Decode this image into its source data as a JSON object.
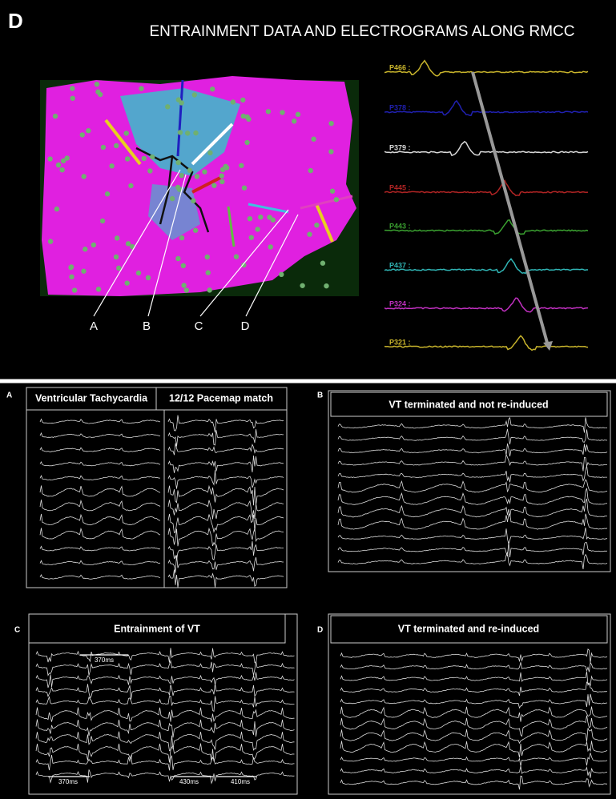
{
  "figure": {
    "panel_label": "D",
    "title": "ENTRAINMENT DATA AND ELECTROGRAMS ALONG RMCC",
    "map_labels": [
      "A",
      "B",
      "C",
      "D"
    ],
    "electrograms": [
      {
        "label": "P466 :",
        "color": "#c8b42c"
      },
      {
        "label": "P378 :",
        "color": "#2020b0"
      },
      {
        "label": "P379 :",
        "color": "#d8d8d8"
      },
      {
        "label": "P445 :",
        "color": "#b02424"
      },
      {
        "label": "P443 :",
        "color": "#3aa030"
      },
      {
        "label": "P437 :",
        "color": "#30b4b4"
      },
      {
        "label": "P324 :",
        "color": "#c030c0"
      },
      {
        "label": "P321 :",
        "color": "#c8b42c"
      }
    ]
  },
  "panels": [
    {
      "label": "A",
      "titles": [
        "Ventricular Tachycardia",
        "12/12 Pacemap match"
      ]
    },
    {
      "label": "B",
      "titles": [
        "VT terminated and not re-induced"
      ]
    },
    {
      "label": "C",
      "titles": [
        "Entrainment of VT"
      ],
      "intervals": [
        "370ms",
        "370ms",
        "430ms",
        "410ms"
      ]
    },
    {
      "label": "D",
      "titles": [
        "VT terminated and re-induced"
      ]
    }
  ]
}
